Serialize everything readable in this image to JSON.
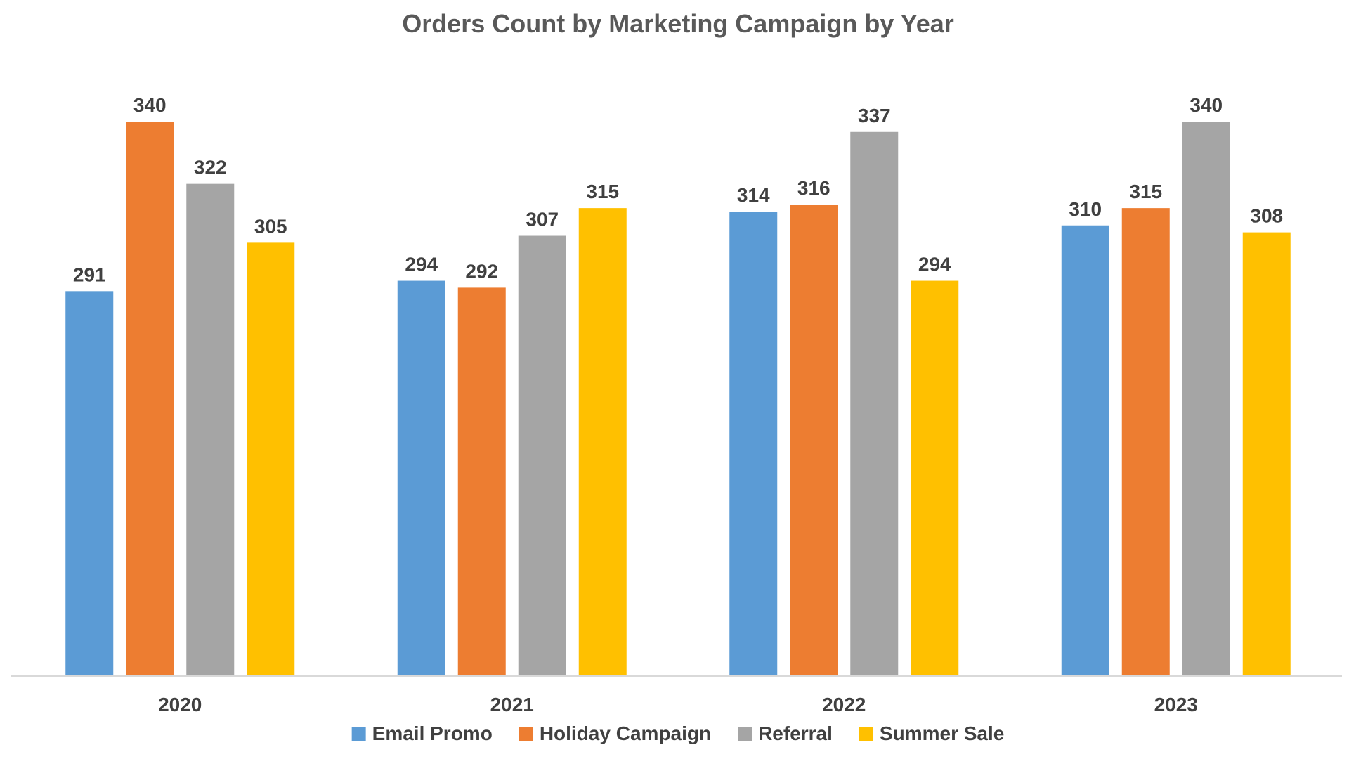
{
  "chart_data": {
    "type": "bar",
    "title": "Orders Count by Marketing Campaign by Year",
    "categories": [
      "2020",
      "2021",
      "2022",
      "2023"
    ],
    "series": [
      {
        "name": "Email Promo",
        "color": "#5B9BD5",
        "values": [
          291,
          294,
          314,
          310
        ]
      },
      {
        "name": "Holiday Campaign",
        "color": "#ED7D31",
        "values": [
          340,
          292,
          316,
          315
        ]
      },
      {
        "name": "Referral",
        "color": "#A5A5A5",
        "values": [
          322,
          307,
          337,
          340
        ]
      },
      {
        "name": "Summer Sale",
        "color": "#FFC000",
        "values": [
          305,
          315,
          294,
          308
        ]
      }
    ],
    "xlabel": "",
    "ylabel": "",
    "ylim": [
      180,
      360
    ],
    "y_axis_visible": false,
    "grid": false,
    "data_labels": true,
    "legend_position": "bottom"
  }
}
